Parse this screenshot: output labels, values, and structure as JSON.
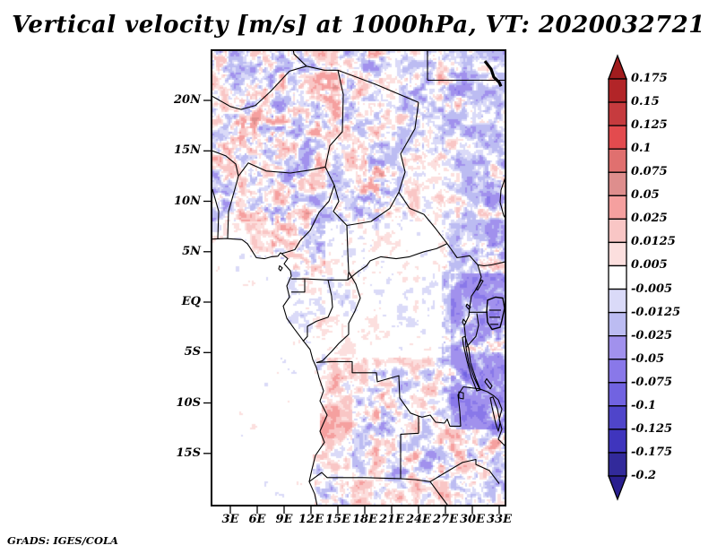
{
  "title": "Vertical velocity [m/s] at 1000hPa, VT: 2020032721",
  "attribution": "GrADS: IGES/COLA",
  "axes": {
    "x_tick_labels": [
      "3E",
      "6E",
      "9E",
      "12E",
      "15E",
      "18E",
      "21E",
      "24E",
      "27E",
      "30E",
      "33E"
    ],
    "x_tick_lons": [
      3,
      6,
      9,
      12,
      15,
      18,
      21,
      24,
      27,
      30,
      33
    ],
    "y_tick_labels": [
      "20N",
      "15N",
      "10N",
      "5N",
      "EQ",
      "5S",
      "10S",
      "15S"
    ],
    "y_tick_lats": [
      20,
      15,
      10,
      5,
      0,
      -5,
      -10,
      -15
    ]
  },
  "colorbar": {
    "tick_labels": [
      "0.175",
      "0.15",
      "0.125",
      "0.1",
      "0.075",
      "0.05",
      "0.025",
      "0.0125",
      "0.005",
      "-0.005",
      "-0.0125",
      "-0.025",
      "-0.05",
      "-0.075",
      "-0.1",
      "-0.125",
      "-0.175",
      "-0.2"
    ],
    "colors": [
      "#a11c1e",
      "#b22528",
      "#c63b3e",
      "#e34b4e",
      "#e0706f",
      "#de8e8d",
      "#f5a09f",
      "#f9c6c5",
      "#fcdfde",
      "#ffffff",
      "#dadaf8",
      "#bcbcf2",
      "#a191ed",
      "#8978e9",
      "#7163e1",
      "#4f45ca",
      "#3f35bd",
      "#322a9b",
      "#2a1f8f"
    ]
  },
  "chart_data": {
    "type": "heatmap",
    "title": "Vertical velocity [m/s] at 1000hPa, VT: 2020032721",
    "variable": "Vertical velocity",
    "units": "m/s",
    "pressure_level": "1000hPa",
    "valid_time": "2020032721",
    "projection": "lat-lon map of central Africa",
    "lon_range_deg_east": [
      1.0,
      33.6
    ],
    "lat_range_deg": [
      -20.1,
      25.0
    ],
    "x_ticks": [
      "3E",
      "6E",
      "9E",
      "12E",
      "15E",
      "18E",
      "21E",
      "24E",
      "27E",
      "30E",
      "33E"
    ],
    "y_ticks": [
      "20N",
      "15N",
      "10N",
      "5N",
      "EQ",
      "5S",
      "10S",
      "15S"
    ],
    "grid": false,
    "legend_position": "right vertical colorbar with end arrows",
    "shade_levels": [
      0.175,
      0.15,
      0.125,
      0.1,
      0.075,
      0.05,
      0.025,
      0.0125,
      0.005,
      -0.005,
      -0.0125,
      -0.025,
      -0.05,
      -0.075,
      -0.1,
      -0.125,
      -0.175,
      -0.2
    ],
    "shade_colors": [
      "#a11c1e",
      "#b22528",
      "#c63b3e",
      "#e34b4e",
      "#e0706f",
      "#de8e8d",
      "#f5a09f",
      "#f9c6c5",
      "#fcdfde",
      "#ffffff",
      "#dadaf8",
      "#bcbcf2",
      "#a191ed",
      "#8978e9",
      "#7163e1",
      "#4f45ca",
      "#3f35bd",
      "#322a9b",
      "#2a1f8f"
    ],
    "field_description": "Noisy small-scale field of rising (red) and sinking (blue) cells: mixed red/blue speckle over the Sahara and Sahel, strong blue band along the East African rift, Lake Victoria surroundings and Ethiopian highlands, near-white over the Gulf of Guinea and Congo basin, light pink over coastal Angola, mixed red/blue over Zambia and the southeast corner.",
    "overlays": "Political boundaries and lakes (Lake Victoria hatched, Lake Tanganyika, Lake Malawi, Lake Nasser) drawn in black"
  }
}
